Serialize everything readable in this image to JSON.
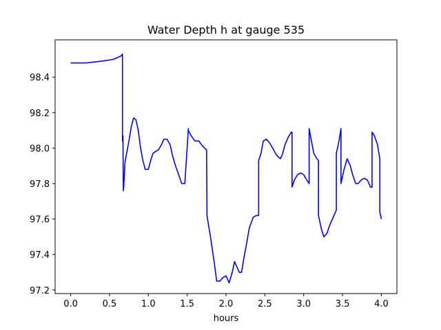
{
  "chart_data": {
    "type": "line",
    "title": "Water Depth h at gauge 535",
    "xlabel": "hours",
    "ylabel": "",
    "xlim": [
      -0.2,
      4.2
    ],
    "ylim": [
      97.18,
      98.61
    ],
    "xticks": [
      0.0,
      0.5,
      1.0,
      1.5,
      2.0,
      2.5,
      3.0,
      3.5,
      4.0
    ],
    "xtick_labels": [
      "0.0",
      "0.5",
      "1.0",
      "1.5",
      "2.0",
      "2.5",
      "3.0",
      "3.5",
      "4.0"
    ],
    "yticks": [
      97.2,
      97.4,
      97.6,
      97.8,
      98.0,
      98.2,
      98.4
    ],
    "ytick_labels": [
      "97.2",
      "97.4",
      "97.6",
      "97.8",
      "98.0",
      "98.2",
      "98.4"
    ],
    "grid": false,
    "legend": "none",
    "series": [
      {
        "color": "#0000ff",
        "x": [
          0.0,
          0.2,
          0.4,
          0.55,
          0.65,
          0.667,
          0.667,
          0.673,
          0.678,
          0.683,
          0.7,
          0.72,
          0.75,
          0.78,
          0.81,
          0.84,
          0.87,
          0.9,
          0.93,
          0.96,
          1.0,
          1.03,
          1.06,
          1.09,
          1.13,
          1.17,
          1.2,
          1.24,
          1.28,
          1.31,
          1.35,
          1.39,
          1.43,
          1.47,
          1.515,
          1.515,
          1.55,
          1.6,
          1.65,
          1.7,
          1.75,
          1.755,
          1.8,
          1.85,
          1.88,
          1.92,
          1.96,
          2.0,
          2.04,
          2.08,
          2.11,
          2.14,
          2.17,
          2.2,
          2.23,
          2.26,
          2.3,
          2.35,
          2.39,
          2.42,
          2.42,
          2.45,
          2.48,
          2.52,
          2.56,
          2.6,
          2.65,
          2.7,
          2.73,
          2.76,
          2.8,
          2.84,
          2.85,
          2.85,
          2.88,
          2.92,
          2.96,
          3.0,
          3.04,
          3.07,
          3.07,
          3.1,
          3.13,
          3.17,
          3.19,
          3.19,
          3.23,
          3.26,
          3.3,
          3.33,
          3.37,
          3.42,
          3.42,
          3.45,
          3.48,
          3.48,
          3.52,
          3.56,
          3.6,
          3.63,
          3.67,
          3.7,
          3.74,
          3.78,
          3.82,
          3.86,
          3.88,
          3.88,
          3.91,
          3.95,
          3.98,
          3.98,
          4.0
        ],
        "y": [
          98.48,
          98.48,
          98.49,
          98.5,
          98.52,
          98.53,
          98.04,
          98.07,
          97.76,
          97.78,
          97.92,
          97.97,
          98.04,
          98.12,
          98.17,
          98.16,
          98.1,
          98.0,
          97.93,
          97.88,
          97.88,
          97.93,
          97.97,
          97.98,
          97.99,
          98.02,
          98.05,
          98.05,
          98.02,
          97.96,
          97.9,
          97.85,
          97.8,
          97.8,
          98.11,
          98.1,
          98.07,
          98.04,
          98.04,
          98.01,
          97.99,
          97.62,
          97.5,
          97.35,
          97.25,
          97.25,
          97.27,
          97.28,
          97.24,
          97.3,
          97.36,
          97.33,
          97.3,
          97.3,
          97.38,
          97.45,
          97.55,
          97.61,
          97.62,
          97.62,
          97.93,
          97.97,
          98.04,
          98.05,
          98.03,
          98.0,
          97.96,
          97.94,
          97.97,
          98.02,
          98.06,
          98.09,
          98.09,
          97.78,
          97.82,
          97.85,
          97.86,
          97.85,
          97.82,
          97.8,
          98.11,
          98.04,
          97.97,
          97.94,
          97.93,
          97.62,
          97.54,
          97.5,
          97.52,
          97.56,
          97.6,
          97.65,
          97.97,
          98.03,
          98.11,
          97.8,
          97.88,
          97.94,
          97.9,
          97.85,
          97.8,
          97.8,
          97.82,
          97.83,
          97.82,
          97.78,
          97.78,
          98.09,
          98.07,
          98.02,
          97.94,
          97.64,
          97.6
        ]
      }
    ]
  }
}
